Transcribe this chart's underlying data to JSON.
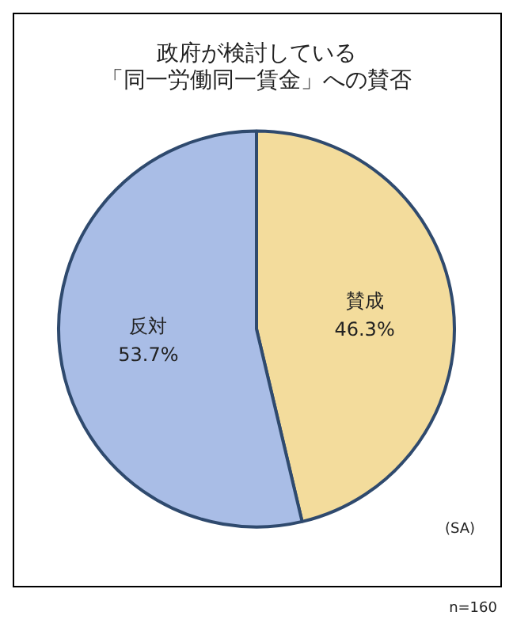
{
  "chart_data": {
    "type": "pie",
    "title": "政府が検討している「同一労働同一賃金」への賛否",
    "categories": [
      "賛成",
      "反対"
    ],
    "values": [
      46.3,
      53.7
    ],
    "value_labels": [
      "46.3%",
      "53.7%"
    ],
    "colors": [
      "#f3dc9c",
      "#a9bde6"
    ],
    "legend": false,
    "annotations": [
      "(SA)",
      "n=160"
    ]
  }
}
